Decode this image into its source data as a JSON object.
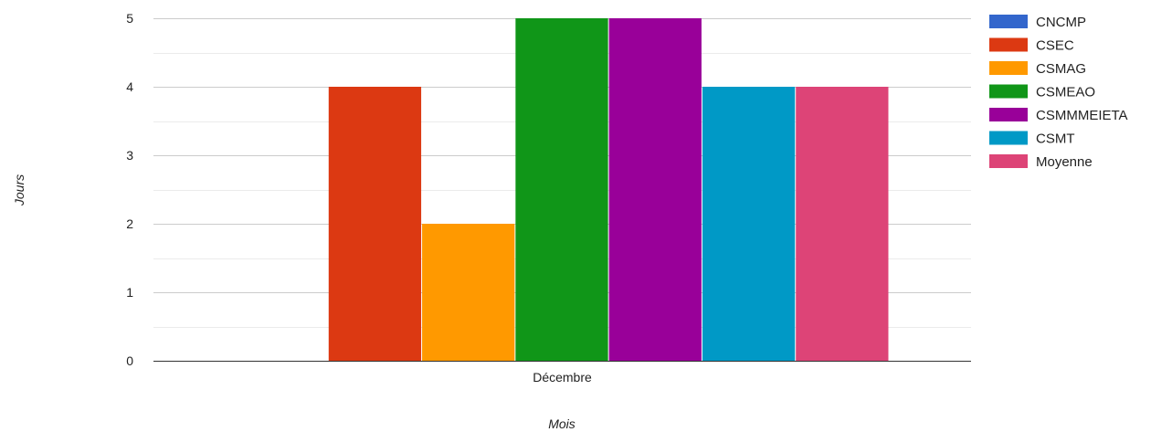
{
  "chart_data": {
    "type": "bar",
    "xlabel": "Mois",
    "ylabel": "Jours",
    "categories": [
      "Décembre"
    ],
    "ylim": [
      0,
      5
    ],
    "y_ticks": [
      "0",
      "1",
      "2",
      "3",
      "4",
      "5"
    ],
    "grid": true,
    "legend_position": "right",
    "series": [
      {
        "name": "CNCMP",
        "values": [
          0
        ],
        "color": "#3366CC"
      },
      {
        "name": "CSEC",
        "values": [
          4
        ],
        "color": "#DC3912"
      },
      {
        "name": "CSMAG",
        "values": [
          2
        ],
        "color": "#FF9900"
      },
      {
        "name": "CSMEAO",
        "values": [
          5
        ],
        "color": "#109618"
      },
      {
        "name": "CSMMMEIETA",
        "values": [
          5
        ],
        "color": "#990099"
      },
      {
        "name": "CSMT",
        "values": [
          4
        ],
        "color": "#0099C6"
      },
      {
        "name": "Moyenne",
        "values": [
          4
        ],
        "color": "#DD4477"
      }
    ]
  }
}
